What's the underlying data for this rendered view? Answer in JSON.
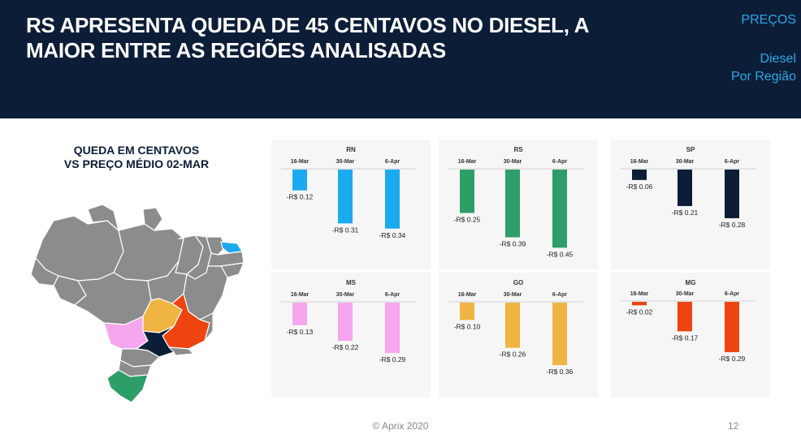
{
  "header": {
    "title": "RS APRESENTA QUEDA DE 45 CENTAVOS NO DIESEL, A MAIOR ENTRE AS REGIÕES ANALISADAS",
    "nav_precos": "PREÇOS",
    "nav_diesel_line1": "Diesel",
    "nav_diesel_line2": "Por Região",
    "bg_color": "#0c1d38",
    "accent_color": "#29a8e6"
  },
  "left_title": {
    "line1": "QUEDA EM CENTAVOS",
    "line2": "VS PREÇO MÉDIO 02-MAR"
  },
  "map": {
    "highlighted_regions": [
      {
        "region": "RN",
        "color": "#1aaaf0"
      },
      {
        "region": "RS",
        "color": "#2e9e68"
      },
      {
        "region": "SP",
        "color": "#0c1d38"
      },
      {
        "region": "MS",
        "color": "#f6a6ee"
      },
      {
        "region": "GO",
        "color": "#efb441"
      },
      {
        "region": "MG",
        "color": "#ee4410"
      }
    ],
    "base_color": "#8c8c8c"
  },
  "chart_data": [
    {
      "type": "bar",
      "title": "RN",
      "categories": [
        "16-Mar",
        "30-Mar",
        "6-Apr"
      ],
      "values": [
        -0.12,
        -0.31,
        -0.34
      ],
      "labels": [
        "-R$ 0.12",
        "-R$ 0.31",
        "-R$ 0.34"
      ],
      "color": "#1aaaf0"
    },
    {
      "type": "bar",
      "title": "RS",
      "categories": [
        "16-Mar",
        "30-Mar",
        "6-Apr"
      ],
      "values": [
        -0.25,
        -0.39,
        -0.45
      ],
      "labels": [
        "-R$ 0.25",
        "-R$ 0.39",
        "-R$ 0.45"
      ],
      "color": "#2e9e68"
    },
    {
      "type": "bar",
      "title": "SP",
      "categories": [
        "16-Mar",
        "30-Mar",
        "6-Apr"
      ],
      "values": [
        -0.06,
        -0.21,
        -0.28
      ],
      "labels": [
        "-R$ 0.06",
        "-R$ 0.21",
        "-R$ 0.28"
      ],
      "color": "#0c1d38"
    },
    {
      "type": "bar",
      "title": "MS",
      "categories": [
        "16-Mar",
        "30-Mar",
        "6-Apr"
      ],
      "values": [
        -0.13,
        -0.22,
        -0.29
      ],
      "labels": [
        "-R$ 0.13",
        "-R$ 0.22",
        "-R$ 0.29"
      ],
      "color": "#f6a6ee"
    },
    {
      "type": "bar",
      "title": "GO",
      "categories": [
        "16-Mar",
        "30-Mar",
        "6-Apr"
      ],
      "values": [
        -0.1,
        -0.26,
        -0.36
      ],
      "labels": [
        "-R$ 0.10",
        "-R$ 0.26",
        "-R$ 0.36"
      ],
      "color": "#efb441"
    },
    {
      "type": "bar",
      "title": "MG",
      "categories": [
        "16-Mar",
        "30-Mar",
        "6-Apr"
      ],
      "values": [
        -0.02,
        -0.17,
        -0.29
      ],
      "labels": [
        "-R$ 0.02",
        "-R$ 0.17",
        "-R$ 0.29"
      ],
      "color": "#ee4410"
    }
  ],
  "footer": {
    "copyright": "© Aprix 2020",
    "page": "12"
  }
}
